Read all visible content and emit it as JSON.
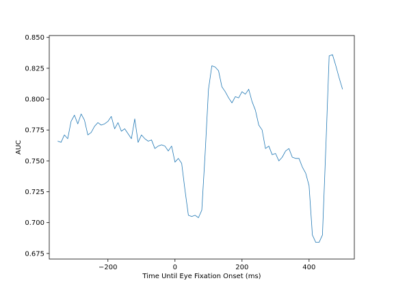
{
  "chart_data": {
    "type": "line",
    "title": "",
    "xlabel": "Time Until Eye Fixation Onset (ms)",
    "ylabel": "AUC",
    "xlim": [
      -375,
      535
    ],
    "ylim": [
      0.6705,
      0.8515
    ],
    "xticks": [
      -200,
      0,
      200,
      400
    ],
    "xtick_labels": [
      "−200",
      "0",
      "200",
      "400"
    ],
    "yticks": [
      0.675,
      0.7,
      0.725,
      0.75,
      0.775,
      0.8,
      0.825,
      0.85
    ],
    "ytick_labels": [
      "0.675",
      "0.700",
      "0.725",
      "0.750",
      "0.775",
      "0.800",
      "0.825",
      "0.850"
    ],
    "grid": false,
    "series_color": "#1f77b4",
    "series": [
      {
        "x": [
          -350,
          -340,
          -330,
          -320,
          -310,
          -300,
          -290,
          -280,
          -270,
          -260,
          -250,
          -240,
          -230,
          -220,
          -210,
          -200,
          -190,
          -180,
          -170,
          -160,
          -150,
          -140,
          -130,
          -120,
          -110,
          -100,
          -90,
          -80,
          -70,
          -60,
          -50,
          -40,
          -30,
          -20,
          -10,
          0,
          10,
          20,
          30,
          40,
          50,
          60,
          70,
          80,
          90,
          100,
          110,
          120,
          130,
          140,
          150,
          160,
          170,
          180,
          190,
          200,
          210,
          220,
          230,
          240,
          250,
          260,
          270,
          280,
          290,
          300,
          310,
          320,
          330,
          340,
          350,
          360,
          370,
          380,
          390,
          400,
          410,
          420,
          430,
          440,
          450,
          460,
          470,
          480,
          490,
          500
        ],
        "y": [
          0.766,
          0.765,
          0.771,
          0.768,
          0.782,
          0.787,
          0.78,
          0.788,
          0.783,
          0.771,
          0.773,
          0.778,
          0.781,
          0.779,
          0.78,
          0.782,
          0.786,
          0.776,
          0.781,
          0.774,
          0.776,
          0.772,
          0.768,
          0.784,
          0.765,
          0.771,
          0.768,
          0.766,
          0.767,
          0.76,
          0.762,
          0.763,
          0.762,
          0.758,
          0.762,
          0.749,
          0.752,
          0.748,
          0.726,
          0.706,
          0.705,
          0.706,
          0.704,
          0.71,
          0.756,
          0.808,
          0.827,
          0.826,
          0.823,
          0.81,
          0.806,
          0.801,
          0.797,
          0.802,
          0.801,
          0.806,
          0.804,
          0.808,
          0.798,
          0.791,
          0.779,
          0.775,
          0.76,
          0.762,
          0.755,
          0.756,
          0.75,
          0.753,
          0.758,
          0.76,
          0.753,
          0.752,
          0.752,
          0.745,
          0.74,
          0.73,
          0.69,
          0.684,
          0.684,
          0.69,
          0.76,
          0.835,
          0.836,
          0.827,
          0.817,
          0.808
        ]
      }
    ]
  }
}
